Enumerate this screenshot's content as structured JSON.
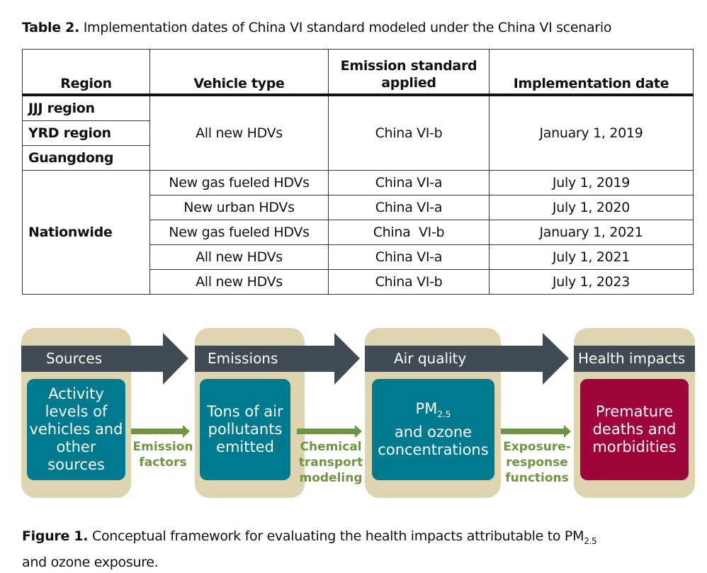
{
  "table": {
    "caption_label": "Table 2.",
    "caption_text": " Implementation dates of China VI standard modeled under the China VI scenario",
    "headers": [
      "Region",
      "Vehicle type",
      "Emission standard applied",
      "Implementation date"
    ],
    "group1": {
      "regions": [
        "JJJ region",
        "YRD region",
        "Guangdong"
      ],
      "vehicle": "All new HDVs",
      "standard": "China VI-b",
      "date": "January 1, 2019"
    },
    "group2": {
      "region": "Nationwide",
      "rows": [
        {
          "vehicle": "New gas fueled HDVs",
          "standard": "China VI-a",
          "date": "July 1, 2019"
        },
        {
          "vehicle": "New urban HDVs",
          "standard": "China VI-a",
          "date": "July 1, 2020"
        },
        {
          "vehicle": "New gas fueled HDVs",
          "standard": "China  VI-b",
          "date": "January 1, 2021"
        },
        {
          "vehicle": "All new HDVs",
          "standard": "China VI-a",
          "date": "July 1, 2021"
        },
        {
          "vehicle": "All new HDVs",
          "standard": "China VI-b",
          "date": "July 1, 2023"
        }
      ]
    }
  },
  "figure": {
    "stages": [
      {
        "title": "Sources",
        "content": "Activity levels of vehicles and other sources"
      },
      {
        "title": "Emissions",
        "content": "Tons of air pollutants emitted"
      },
      {
        "title": "Air quality",
        "content_pm": "PM",
        "content_sub": "2.5",
        "content": "and ozone concentrations"
      },
      {
        "title": "Health impacts",
        "content": "Premature deaths and morbidities"
      }
    ],
    "links": [
      "Emission factors",
      "Chemical transport modeling",
      "Exposure-response functions"
    ],
    "caption_label": "Figure 1.",
    "caption_text": " Conceptual framework for evaluating the health impacts attributable to PM",
    "caption_sub": "2.5",
    "caption_text2": "and ozone exposure.",
    "colors": {
      "tan": "#ded5b0",
      "band": "#414b54",
      "teal": "#007a8f",
      "crimson": "#9f053b",
      "green": "#6e9540"
    }
  }
}
